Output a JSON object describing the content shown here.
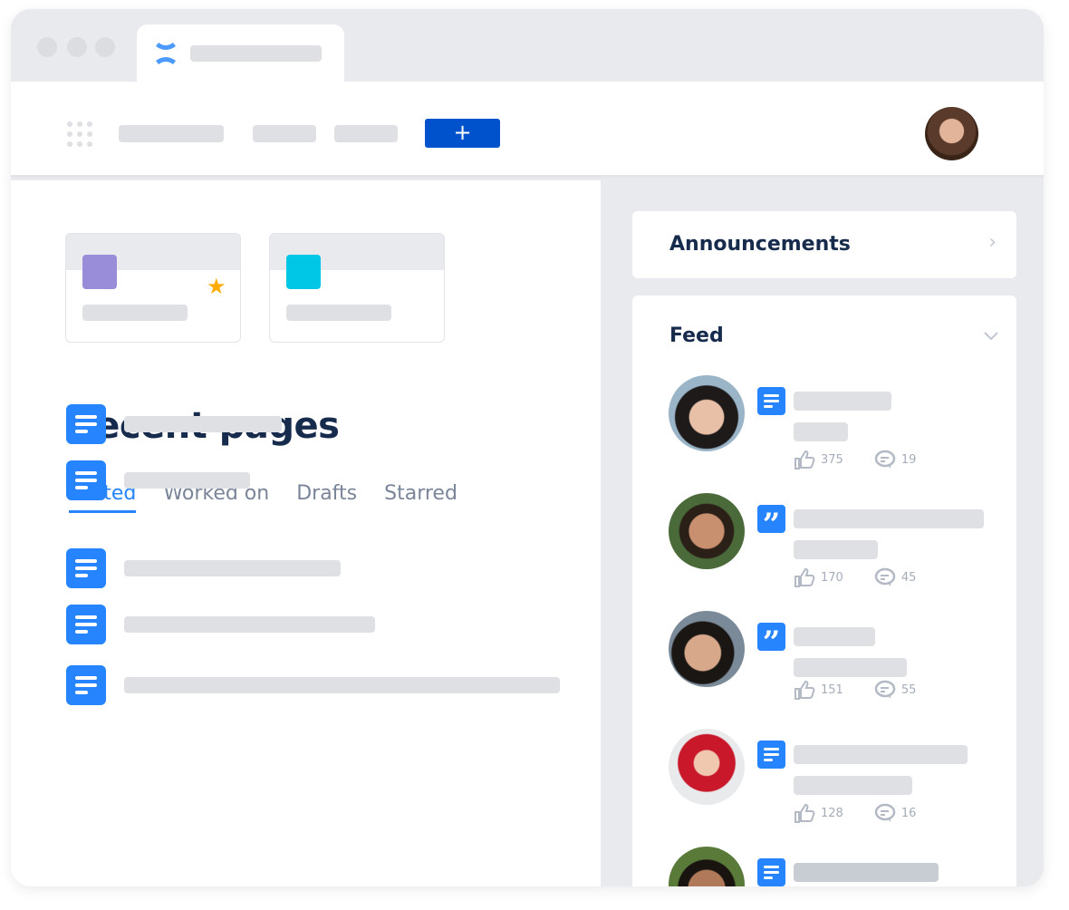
{
  "header": {
    "add_button": "+"
  },
  "recent": {
    "title": "Recent pages",
    "tabs": [
      {
        "label": "Visited",
        "active": true
      },
      {
        "label": "Worked on"
      },
      {
        "label": "Drafts"
      },
      {
        "label": "Starred"
      }
    ]
  },
  "announcements": {
    "title": "Announcements"
  },
  "feed": {
    "title": "Feed",
    "items": [
      {
        "type": "page-icon",
        "likes": "375",
        "comments": "19"
      },
      {
        "type": "quote-icon",
        "likes": "170",
        "comments": "45"
      },
      {
        "type": "quote-icon",
        "likes": "151",
        "comments": "55"
      },
      {
        "type": "page-icon",
        "likes": "128",
        "comments": "16"
      },
      {
        "type": "page-icon"
      }
    ]
  },
  "colors": {
    "accent": "#2684ff",
    "primary_button": "#0052cc",
    "text": "#172b4d",
    "star": "#ffab00"
  }
}
